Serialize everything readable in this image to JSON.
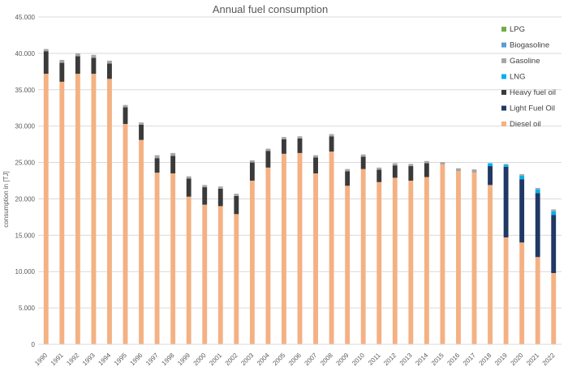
{
  "chart_data": {
    "type": "bar",
    "stacked": true,
    "title": "Annual fuel consumption",
    "ylabel": "consumption in [TJ]",
    "xlabel": "",
    "ylim": [
      0,
      45000
    ],
    "ytick_step": 5000,
    "ytick_labels": [
      "0",
      "5.000",
      "10.000",
      "15.000",
      "20.000",
      "25.000",
      "30.000",
      "35.000",
      "40.000",
      "45.000"
    ],
    "grid": true,
    "legend_position": "right",
    "categories": [
      "1990",
      "1991",
      "1992",
      "1993",
      "1994",
      "1995",
      "1996",
      "1997",
      "1998",
      "1999",
      "2000",
      "2001",
      "2002",
      "2003",
      "2004",
      "2005",
      "2006",
      "2007",
      "2008",
      "2009",
      "2010",
      "2011",
      "2012",
      "2013",
      "2014",
      "2015",
      "2016",
      "2017",
      "2018",
      "2019",
      "2020",
      "2021",
      "2022"
    ],
    "series": [
      {
        "name": "Diesel oil",
        "color": "#f4b183",
        "values": [
          37200,
          36100,
          37200,
          37200,
          36500,
          30300,
          28100,
          23600,
          23500,
          20300,
          19200,
          19000,
          17900,
          22500,
          24300,
          26200,
          26300,
          23500,
          26500,
          21800,
          24100,
          22300,
          22900,
          22500,
          23000,
          24700,
          23800,
          23600,
          21900,
          14700,
          14000,
          12000,
          9800
        ]
      },
      {
        "name": "Light Fuel Oil",
        "color": "#203864",
        "values": [
          0,
          0,
          0,
          0,
          0,
          0,
          0,
          0,
          0,
          0,
          0,
          0,
          0,
          0,
          0,
          0,
          0,
          0,
          0,
          0,
          0,
          0,
          0,
          0,
          0,
          0,
          0,
          0,
          2600,
          9700,
          8700,
          8800,
          8000
        ]
      },
      {
        "name": "Heavy fuel oil",
        "color": "#3a3a3a",
        "values": [
          3100,
          2600,
          2400,
          2200,
          2100,
          2300,
          2100,
          2000,
          2400,
          2500,
          2400,
          2400,
          2500,
          2500,
          2300,
          2000,
          2000,
          2200,
          2100,
          2000,
          1700,
          1700,
          1700,
          2000,
          1900,
          0,
          0,
          0,
          0,
          0,
          0,
          0,
          0
        ]
      },
      {
        "name": "LNG",
        "color": "#00b0f0",
        "values": [
          0,
          0,
          0,
          0,
          0,
          0,
          0,
          0,
          0,
          0,
          0,
          0,
          0,
          0,
          0,
          0,
          0,
          0,
          0,
          0,
          0,
          0,
          0,
          0,
          0,
          0,
          0,
          0,
          400,
          300,
          500,
          500,
          500
        ]
      },
      {
        "name": "Gasoline",
        "color": "#a6a6a6",
        "values": [
          300,
          400,
          400,
          400,
          400,
          300,
          300,
          400,
          400,
          300,
          300,
          300,
          300,
          300,
          300,
          300,
          300,
          300,
          300,
          300,
          300,
          300,
          300,
          300,
          300,
          350,
          400,
          450,
          0,
          100,
          200,
          200,
          250
        ]
      },
      {
        "name": "Biogasoline",
        "color": "#5b9bd5",
        "values": [
          0,
          0,
          0,
          0,
          0,
          0,
          0,
          0,
          0,
          0,
          0,
          0,
          0,
          0,
          0,
          0,
          0,
          0,
          0,
          0,
          0,
          0,
          0,
          0,
          0,
          0,
          0,
          0,
          0,
          0,
          0,
          0,
          0
        ]
      },
      {
        "name": "LPG",
        "color": "#70ad47",
        "values": [
          0,
          0,
          0,
          0,
          0,
          0,
          0,
          0,
          0,
          0,
          0,
          0,
          0,
          0,
          0,
          0,
          0,
          0,
          0,
          0,
          0,
          0,
          0,
          0,
          0,
          0,
          0,
          0,
          0,
          0,
          0,
          0,
          0
        ]
      }
    ],
    "legend_order": [
      "LPG",
      "Biogasoline",
      "Gasoline",
      "LNG",
      "Heavy fuel oil",
      "Light Fuel Oil",
      "Diesel oil"
    ]
  }
}
